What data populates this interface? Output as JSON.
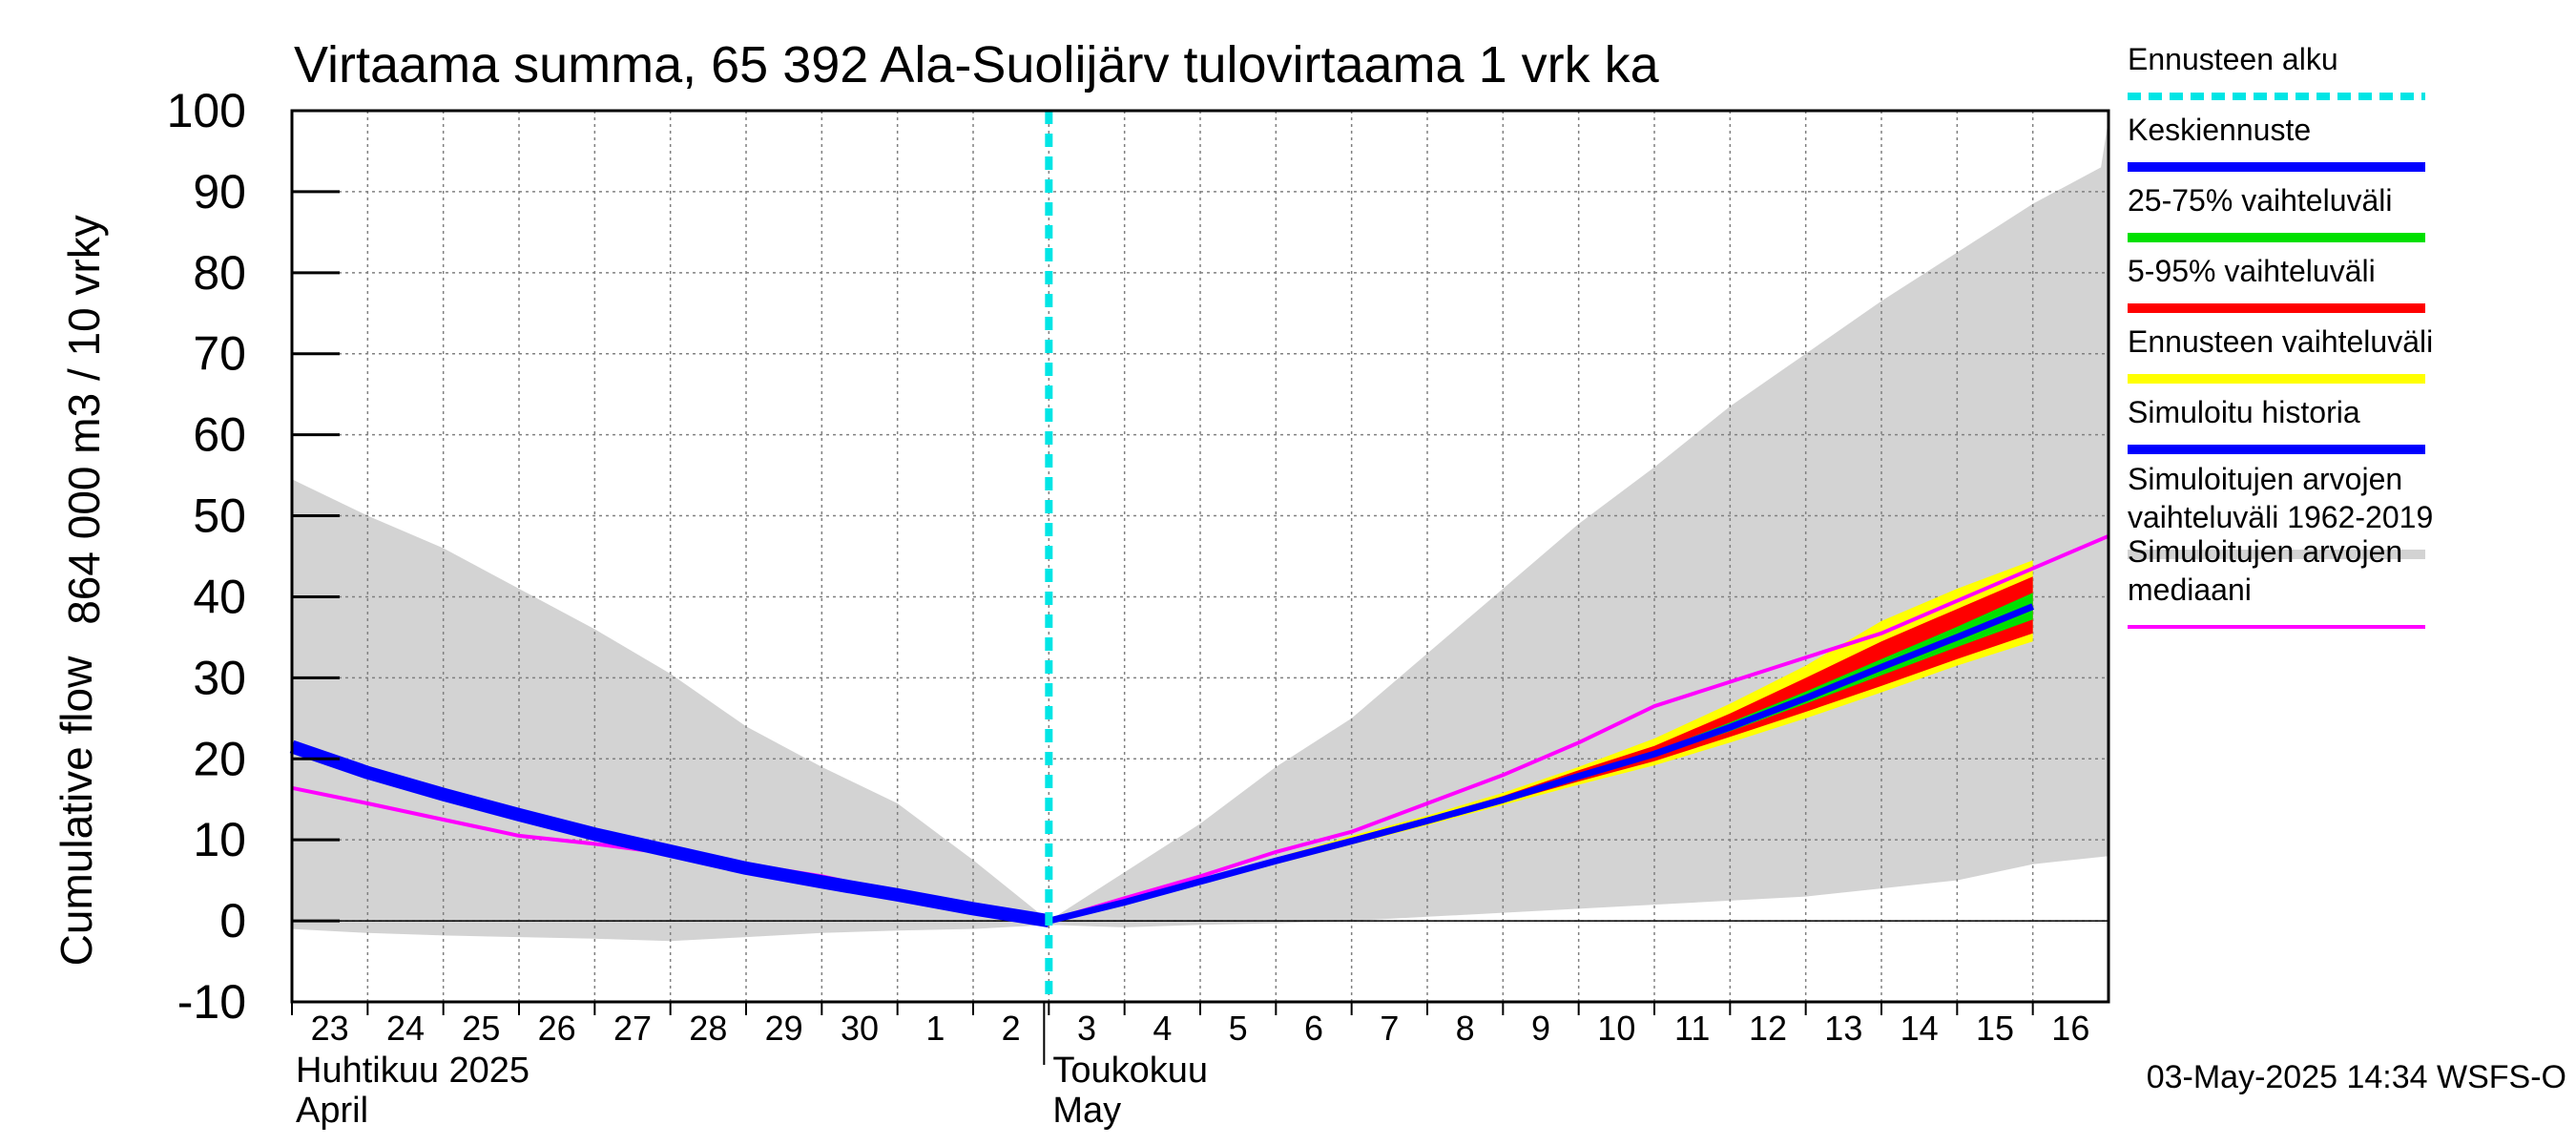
{
  "chart_data": {
    "type": "area",
    "title": "Virtaama summa, 65 392 Ala-Suolijärv tulovirtaama 1 vrk ka",
    "ylabel_fi": "864 000 m3 / 10 vrky",
    "ylabel_en": "Cumulative flow",
    "ylim": [
      -10,
      100
    ],
    "yticks": [
      -10,
      0,
      10,
      20,
      30,
      40,
      50,
      60,
      70,
      80,
      90,
      100
    ],
    "x_start": "2025-04-23",
    "x_end": "2025-05-16",
    "day_labels": [
      "23",
      "24",
      "25",
      "26",
      "27",
      "28",
      "29",
      "30",
      "1",
      "2",
      "3",
      "4",
      "5",
      "6",
      "7",
      "8",
      "9",
      "10",
      "11",
      "12",
      "13",
      "14",
      "15",
      "16"
    ],
    "month_labels": [
      {
        "fi": "Huhtikuu  2025",
        "en": "April",
        "at_day": "23"
      },
      {
        "fi": "Toukokuu",
        "en": "May",
        "at_day": "3"
      }
    ],
    "forecast_start": "3",
    "grid": true,
    "legend_position": "right",
    "legend": [
      {
        "label": "Ennusteen alku",
        "color": "#00e5e5",
        "style": "dashed"
      },
      {
        "label": "Keskiennuste",
        "color": "#0000ff"
      },
      {
        "label": "25-75% vaihteluväli",
        "color": "#00e000"
      },
      {
        "label": "5-95% vaihteluväli",
        "color": "#ff0000"
      },
      {
        "label": "Ennusteen vaihteluväli",
        "color": "#ffff00"
      },
      {
        "label": "Simuloitu historia",
        "color": "#0000ff"
      },
      {
        "label": "Simuloitujen arvojen vaihteluväli 1962-2019",
        "lines": [
          "Simuloitujen arvojen",
          "vaihteluväli 1962-2019"
        ],
        "color": "#d3d3d3"
      },
      {
        "label": "Simuloitujen arvojen mediaani",
        "lines": [
          "Simuloitujen arvojen",
          "mediaani"
        ],
        "color": "#ff00ff"
      }
    ],
    "series": {
      "range_1962_2019": {
        "upper": [
          [
            0,
            54.5
          ],
          [
            1,
            50
          ],
          [
            2,
            46
          ],
          [
            3,
            41
          ],
          [
            4,
            36
          ],
          [
            5,
            30.5
          ],
          [
            6,
            24
          ],
          [
            7,
            19
          ],
          [
            8,
            14.5
          ],
          [
            9,
            7.5
          ],
          [
            10,
            0
          ],
          [
            11,
            6
          ],
          [
            12,
            12
          ],
          [
            13,
            19
          ],
          [
            14,
            25
          ],
          [
            15,
            33
          ],
          [
            16,
            41
          ],
          [
            17,
            49
          ],
          [
            18,
            56
          ],
          [
            19,
            63.5
          ],
          [
            20,
            70
          ],
          [
            21,
            76.5
          ],
          [
            22,
            82.5
          ],
          [
            23,
            88.5
          ],
          [
            23.9,
            93
          ],
          [
            24,
            99
          ]
        ],
        "lower": [
          [
            0,
            -1
          ],
          [
            1,
            -1.5
          ],
          [
            2,
            -1.8
          ],
          [
            3,
            -2
          ],
          [
            4,
            -2.2
          ],
          [
            5,
            -2.5
          ],
          [
            6,
            -2
          ],
          [
            7,
            -1.5
          ],
          [
            8,
            -1.2
          ],
          [
            9,
            -1
          ],
          [
            10,
            -0.5
          ],
          [
            11,
            -0.8
          ],
          [
            12,
            -0.5
          ],
          [
            13,
            -0.3
          ],
          [
            14,
            0
          ],
          [
            15,
            0.5
          ],
          [
            16,
            1
          ],
          [
            17,
            1.5
          ],
          [
            18,
            2
          ],
          [
            19,
            2.5
          ],
          [
            20,
            3
          ],
          [
            21,
            4
          ],
          [
            22,
            5
          ],
          [
            23,
            7
          ],
          [
            24,
            8
          ]
        ]
      },
      "forecast_range": {
        "upper": [
          [
            10,
            0
          ],
          [
            11,
            2.5
          ],
          [
            12,
            5.2
          ],
          [
            13,
            7.8
          ],
          [
            14,
            10.5
          ],
          [
            15,
            13
          ],
          [
            16,
            15.8
          ],
          [
            17,
            19
          ],
          [
            18,
            22.5
          ],
          [
            19,
            26.8
          ],
          [
            20,
            31.5
          ],
          [
            21,
            37
          ],
          [
            22,
            41
          ],
          [
            23,
            44.5
          ]
        ],
        "lower": [
          [
            10,
            0
          ],
          [
            11,
            2.1
          ],
          [
            12,
            4.5
          ],
          [
            13,
            7
          ],
          [
            14,
            9.4
          ],
          [
            15,
            11.8
          ],
          [
            16,
            14.3
          ],
          [
            17,
            16.8
          ],
          [
            18,
            19.2
          ],
          [
            19,
            22
          ],
          [
            20,
            25
          ],
          [
            21,
            28.2
          ],
          [
            22,
            31.5
          ],
          [
            23,
            34.5
          ]
        ]
      },
      "p5_95": {
        "upper": [
          [
            10,
            0
          ],
          [
            11,
            2.4
          ],
          [
            12,
            5
          ],
          [
            13,
            7.6
          ],
          [
            14,
            10.2
          ],
          [
            15,
            12.7
          ],
          [
            16,
            15.4
          ],
          [
            17,
            18.6
          ],
          [
            18,
            21.6
          ],
          [
            19,
            25.6
          ],
          [
            20,
            30
          ],
          [
            21,
            34.5
          ],
          [
            22,
            38.5
          ],
          [
            23,
            42.5
          ]
        ],
        "lower": [
          [
            10,
            0
          ],
          [
            11,
            2.2
          ],
          [
            12,
            4.7
          ],
          [
            13,
            7.2
          ],
          [
            14,
            9.6
          ],
          [
            15,
            12
          ],
          [
            16,
            14.6
          ],
          [
            17,
            17.2
          ],
          [
            18,
            19.7
          ],
          [
            19,
            22.7
          ],
          [
            20,
            25.8
          ],
          [
            21,
            29
          ],
          [
            22,
            32.3
          ],
          [
            23,
            35.5
          ]
        ]
      },
      "p25_75": {
        "upper": [
          [
            10,
            0
          ],
          [
            11,
            2.35
          ],
          [
            12,
            4.9
          ],
          [
            13,
            7.5
          ],
          [
            14,
            10
          ],
          [
            15,
            12.5
          ],
          [
            16,
            15.1
          ],
          [
            17,
            18.1
          ],
          [
            18,
            20.9
          ],
          [
            19,
            24.5
          ],
          [
            20,
            28.3
          ],
          [
            21,
            32.3
          ],
          [
            22,
            36.3
          ],
          [
            23,
            40.5
          ]
        ],
        "lower": [
          [
            10,
            0
          ],
          [
            11,
            2.25
          ],
          [
            12,
            4.8
          ],
          [
            13,
            7.3
          ],
          [
            14,
            9.7
          ],
          [
            15,
            12.2
          ],
          [
            16,
            14.8
          ],
          [
            17,
            17.6
          ],
          [
            18,
            20.3
          ],
          [
            19,
            23.4
          ],
          [
            20,
            26.8
          ],
          [
            21,
            30.3
          ],
          [
            22,
            33.8
          ],
          [
            23,
            37.2
          ]
        ]
      },
      "mean_forecast": [
        [
          10,
          0
        ],
        [
          11,
          2.3
        ],
        [
          12,
          4.85
        ],
        [
          13,
          7.4
        ],
        [
          14,
          9.85
        ],
        [
          15,
          12.35
        ],
        [
          16,
          14.95
        ],
        [
          17,
          17.85
        ],
        [
          18,
          20.6
        ],
        [
          19,
          23.9
        ],
        [
          20,
          27.5
        ],
        [
          21,
          31.3
        ],
        [
          22,
          35
        ],
        [
          23,
          38.8
        ]
      ],
      "simulated_history": [
        [
          0,
          21.5
        ],
        [
          1,
          18.3
        ],
        [
          2,
          15.6
        ],
        [
          3,
          13.1
        ],
        [
          4,
          10.7
        ],
        [
          5,
          8.6
        ],
        [
          6,
          6.5
        ],
        [
          7,
          4.8
        ],
        [
          8,
          3.2
        ],
        [
          9,
          1.5
        ],
        [
          10,
          0
        ]
      ],
      "median_1962_2019": [
        [
          0,
          16.4
        ],
        [
          1,
          14.5
        ],
        [
          2,
          12.5
        ],
        [
          3,
          10.5
        ],
        [
          4,
          9.5
        ],
        [
          5,
          8.3
        ],
        [
          6,
          7
        ],
        [
          7,
          5.5
        ],
        [
          8,
          3.5
        ],
        [
          9,
          1.8
        ],
        [
          10,
          0
        ],
        [
          11,
          2.8
        ],
        [
          12,
          5.5
        ],
        [
          13,
          8.5
        ],
        [
          14,
          11
        ],
        [
          15,
          14.5
        ],
        [
          16,
          18
        ],
        [
          17,
          22
        ],
        [
          18,
          26.5
        ],
        [
          19,
          29.5
        ],
        [
          20,
          32.5
        ],
        [
          21,
          35.5
        ],
        [
          22,
          39.5
        ],
        [
          23,
          43.5
        ],
        [
          24,
          47.5
        ]
      ]
    }
  },
  "footer": {
    "timestamp": "03-May-2025 14:34 WSFS-O"
  }
}
